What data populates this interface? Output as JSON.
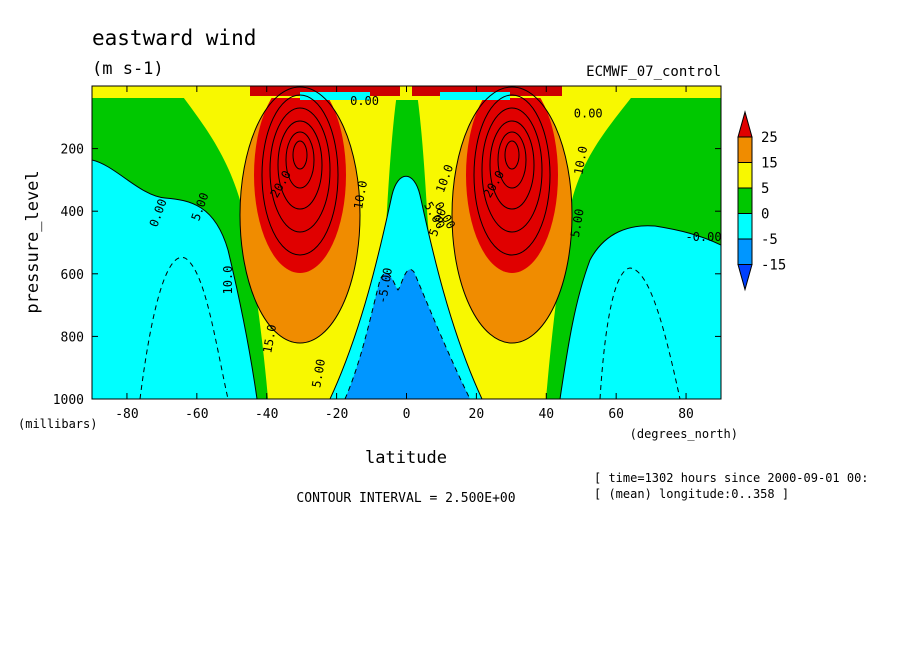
{
  "chart_data": {
    "type": "heatmap",
    "title": "eastward wind",
    "units": "(m s-1)",
    "dataset": "ECMWF_07_control",
    "xlabel": "latitude",
    "x_unit_label": "(degrees_north)",
    "ylabel": "pressure_level",
    "y_unit_label": "(millibars)",
    "xlim": [
      -90,
      90
    ],
    "ylim": [
      1000,
      0
    ],
    "x_ticks": [
      -80,
      -60,
      -40,
      -20,
      0,
      20,
      40,
      60,
      80
    ],
    "y_ticks": [
      200,
      400,
      600,
      800,
      1000
    ],
    "colorbar_levels": [
      "25",
      "15",
      "5",
      "0",
      "-5",
      "-15"
    ],
    "colorbar_colors": [
      "#e00000",
      "#f08c00",
      "#f8f800",
      "#00c800",
      "#00ffff",
      "#0096ff",
      "#0040ff"
    ],
    "contour_interval_text": "CONTOUR INTERVAL = 2.500E+00",
    "info_lines": [
      "[ time=1302 hours since 2000-09-01 00:",
      "[ (mean) longitude:0..358 ]"
    ],
    "contour_labels": [
      "0.00",
      "5.00",
      "10.0",
      "15.0",
      "20.0",
      "5.00",
      "10.0",
      "-5.00",
      "0.00",
      "5.00",
      "10.0",
      "20.0",
      "5.00",
      "10.0",
      "-0.00",
      "0.00",
      "5.00",
      "0.00"
    ],
    "jets": [
      {
        "lat": -30,
        "pressure": 200,
        "peak": 30
      },
      {
        "lat": 30,
        "pressure": 200,
        "peak": 30
      }
    ]
  }
}
